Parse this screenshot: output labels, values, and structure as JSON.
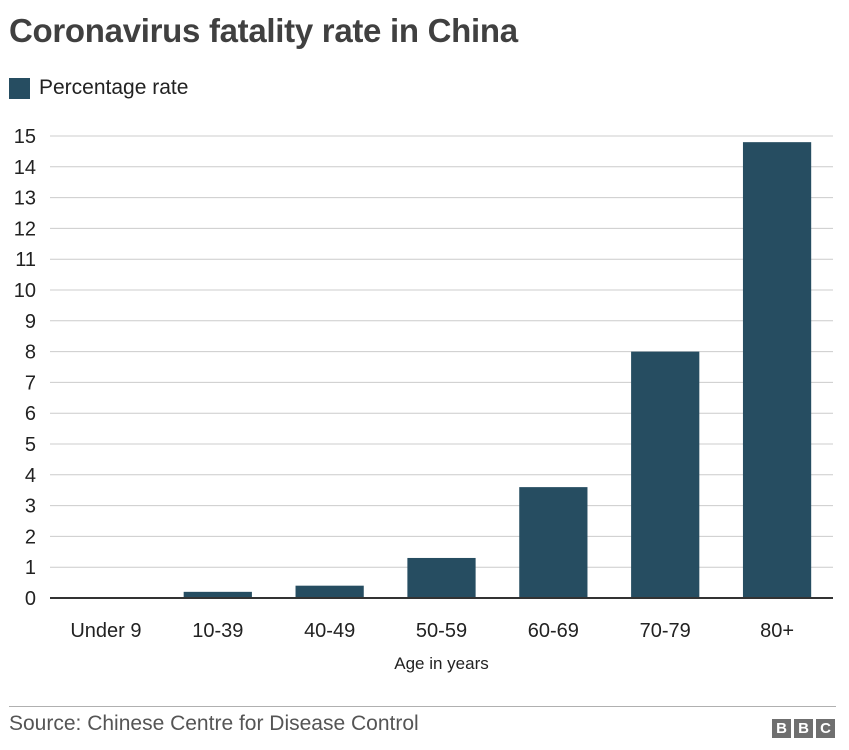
{
  "header": {
    "title": "Coronavirus fatality rate in China"
  },
  "chart_data": {
    "type": "bar",
    "title": "Coronavirus fatality rate in China",
    "xlabel": "Age in years",
    "ylabel": "",
    "legend": [
      {
        "name": "Percentage rate",
        "color": "#264d61"
      }
    ],
    "legend_position": "top-left",
    "grid": true,
    "categories": [
      "Under 9",
      "10-39",
      "40-49",
      "50-59",
      "60-69",
      "70-79",
      "80+"
    ],
    "series": [
      {
        "name": "Percentage rate",
        "values": [
          0,
          0.2,
          0.4,
          1.3,
          3.6,
          8.0,
          14.8
        ]
      }
    ],
    "yticks": [
      "0",
      "1",
      "2",
      "3",
      "4",
      "5",
      "6",
      "7",
      "8",
      "9",
      "10",
      "11",
      "12",
      "13",
      "14",
      "15"
    ],
    "ylim": [
      0,
      15
    ]
  },
  "footer": {
    "source": "Source: Chinese Centre for Disease Control",
    "logo_letters": [
      "B",
      "B",
      "C"
    ]
  },
  "colors": {
    "bar": "#264d61",
    "grid": "#cccccc",
    "axis": "#333333"
  }
}
